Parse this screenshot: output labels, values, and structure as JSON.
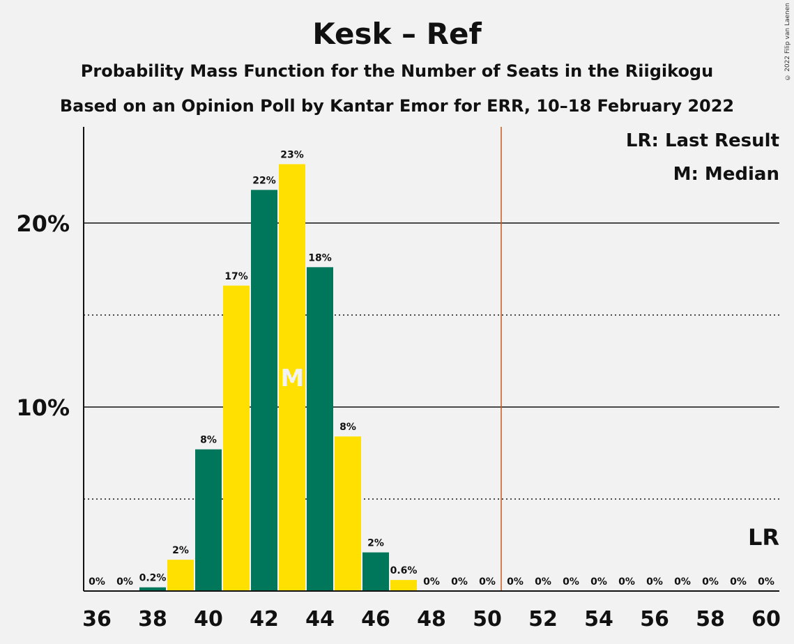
{
  "chart_data": {
    "type": "bar",
    "title": "Kesk – Ref",
    "subtitle": "Probability Mass Function for the Number of Seats in the Riigikogu",
    "subtitle2": "Based on an Opinion Poll by Kantar Emor for ERR, 10–18 February 2022",
    "copyright": "© 2022 Filip van Laenen",
    "x": [
      36,
      37,
      38,
      39,
      40,
      41,
      42,
      43,
      44,
      45,
      46,
      47,
      48,
      49,
      50,
      51,
      52,
      53,
      54,
      55,
      56,
      57,
      58,
      59,
      60
    ],
    "values": [
      0,
      0,
      0.2,
      1.7,
      7.7,
      16.6,
      21.8,
      23.2,
      17.6,
      8.4,
      2.1,
      0.6,
      0,
      0,
      0,
      0,
      0,
      0,
      0,
      0,
      0,
      0,
      0,
      0,
      0
    ],
    "labels": [
      "0%",
      "0%",
      "0.2%",
      "2%",
      "8%",
      "17%",
      "22%",
      "23%",
      "18%",
      "8%",
      "2%",
      "0.6%",
      "0%",
      "0%",
      "0%",
      "0%",
      "0%",
      "0%",
      "0%",
      "0%",
      "0%",
      "0%",
      "0%",
      "0%",
      "0%"
    ],
    "xticks": [
      36,
      38,
      40,
      42,
      44,
      46,
      48,
      50,
      52,
      54,
      56,
      58,
      60
    ],
    "yticks": [
      {
        "value": 10,
        "label": "10%"
      },
      {
        "value": 20,
        "label": "20%"
      }
    ],
    "minor_gridlines": [
      5,
      15
    ],
    "ylim": [
      0,
      25
    ],
    "median": 43,
    "median_label": "M",
    "last_result": 50.5,
    "last_result_label": "LR",
    "legend": [
      "LR: Last Result",
      "M: Median"
    ],
    "legend_placement": "top-right",
    "colors": {
      "green": "#00775a",
      "yellow": "#ffe000",
      "last_result_line": "#c85a1e",
      "grid": "#111111"
    }
  }
}
